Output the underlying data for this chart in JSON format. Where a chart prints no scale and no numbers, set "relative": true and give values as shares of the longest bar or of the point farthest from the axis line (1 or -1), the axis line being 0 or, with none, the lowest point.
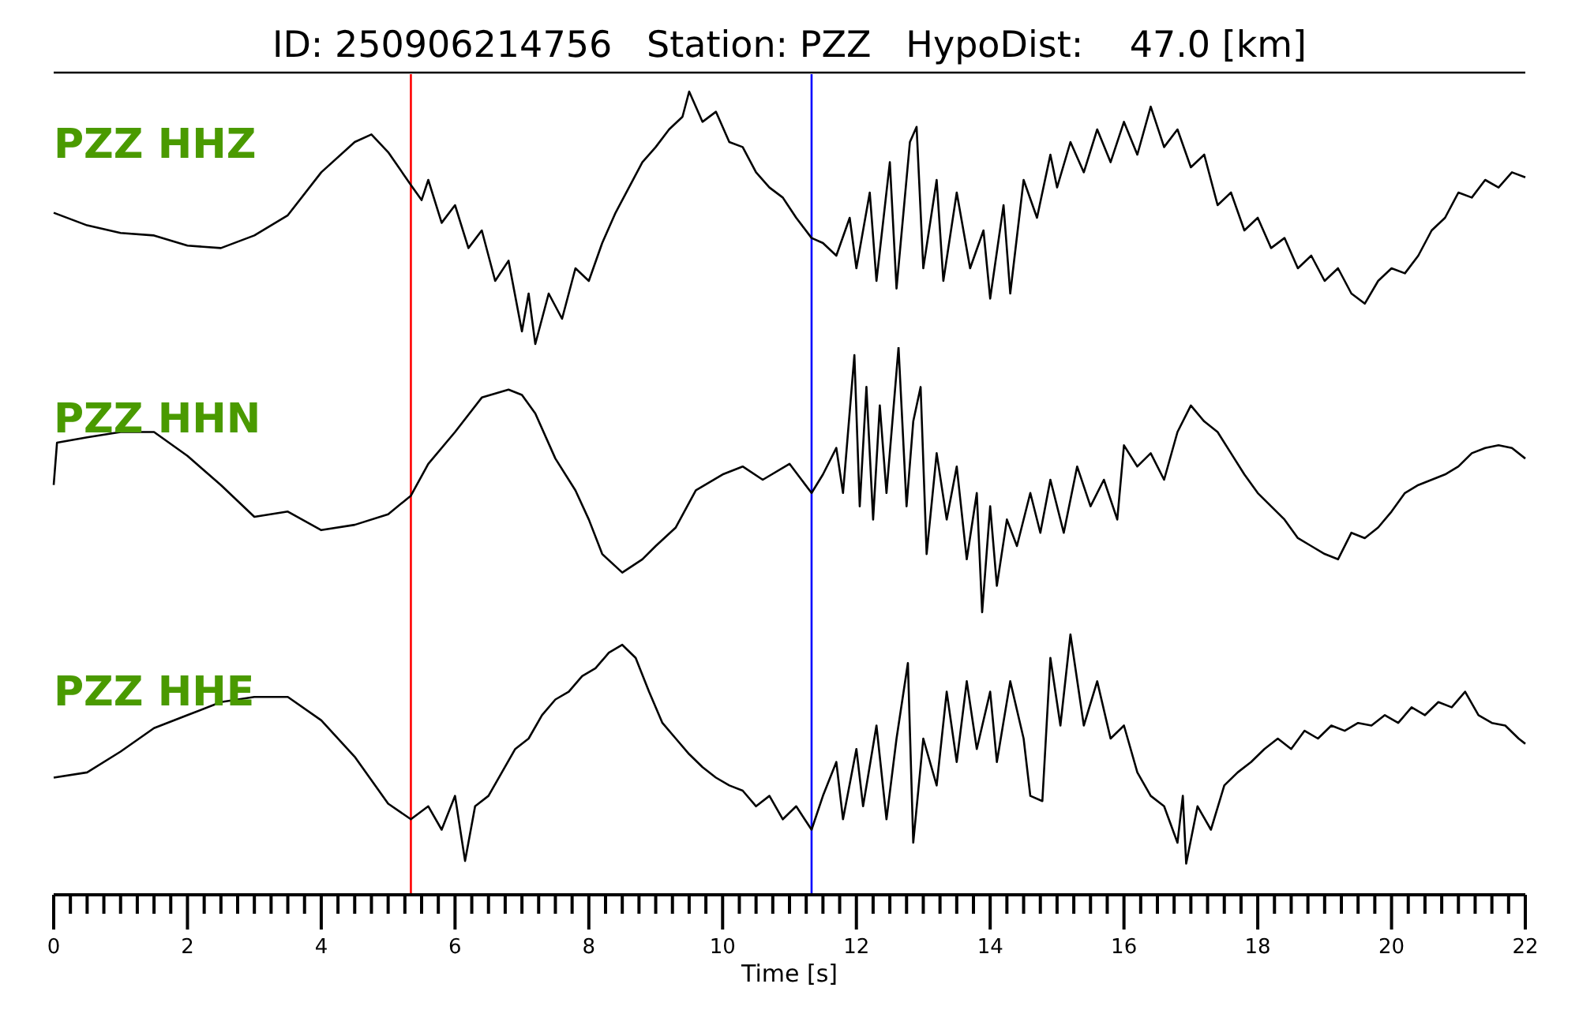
{
  "chart_data": [
    {
      "type": "line",
      "title": "ID: 250906214756   Station: PZZ   HypoDist:    47.0 [km]",
      "relative": true,
      "xlim": [
        0,
        22
      ],
      "tick_labels": false,
      "series": [
        {
          "name": "PZZ HHZ",
          "color": "#000000",
          "x": [
            0,
            0.5,
            1,
            1.5,
            2,
            2.5,
            3,
            3.5,
            4,
            4.5,
            4.75,
            5,
            5.34,
            5.5,
            5.6,
            5.8,
            6,
            6.2,
            6.4,
            6.6,
            6.8,
            7,
            7.1,
            7.2,
            7.4,
            7.6,
            7.8,
            8,
            8.2,
            8.4,
            8.6,
            8.8,
            9,
            9.2,
            9.4,
            9.5,
            9.7,
            9.9,
            10.1,
            10.3,
            10.5,
            10.7,
            10.9,
            11.1,
            11.33,
            11.5,
            11.7,
            11.9,
            12,
            12.2,
            12.3,
            12.5,
            12.6,
            12.8,
            12.9,
            13,
            13.2,
            13.3,
            13.5,
            13.7,
            13.9,
            14,
            14.2,
            14.3,
            14.5,
            14.7,
            14.9,
            15,
            15.2,
            15.4,
            15.6,
            15.8,
            16,
            16.2,
            16.4,
            16.6,
            16.8,
            17,
            17.2,
            17.4,
            17.6,
            17.8,
            18,
            18.2,
            18.4,
            18.6,
            18.8,
            19,
            19.2,
            19.4,
            19.6,
            19.8,
            20,
            20.2,
            20.4,
            20.6,
            20.8,
            21,
            21.2,
            21.4,
            21.6,
            21.8,
            22
          ],
          "values": [
            0.52,
            0.47,
            0.44,
            0.43,
            0.39,
            0.38,
            0.43,
            0.51,
            0.68,
            0.8,
            0.83,
            0.76,
            0.63,
            0.57,
            0.65,
            0.48,
            0.55,
            0.38,
            0.45,
            0.25,
            0.33,
            0.05,
            0.2,
            0,
            0.2,
            0.1,
            0.3,
            0.25,
            0.4,
            0.52,
            0.62,
            0.72,
            0.78,
            0.85,
            0.9,
            1,
            0.88,
            0.92,
            0.8,
            0.78,
            0.68,
            0.62,
            0.58,
            0.5,
            0.42,
            0.4,
            0.35,
            0.5,
            0.3,
            0.6,
            0.25,
            0.72,
            0.22,
            0.8,
            0.86,
            0.3,
            0.65,
            0.25,
            0.6,
            0.3,
            0.45,
            0.18,
            0.55,
            0.2,
            0.65,
            0.5,
            0.75,
            0.62,
            0.8,
            0.68,
            0.85,
            0.72,
            0.88,
            0.75,
            0.94,
            0.78,
            0.85,
            0.7,
            0.75,
            0.55,
            0.6,
            0.45,
            0.5,
            0.38,
            0.42,
            0.3,
            0.35,
            0.25,
            0.3,
            0.2,
            0.16,
            0.25,
            0.3,
            0.28,
            0.35,
            0.45,
            0.5,
            0.6,
            0.58,
            0.65,
            0.62,
            0.68,
            0.66
          ]
        }
      ],
      "ref_lines": [
        {
          "axis": "x",
          "value": 5.34,
          "color": "#ff0000"
        },
        {
          "axis": "x",
          "value": 11.33,
          "color": "#0000ff"
        }
      ]
    },
    {
      "type": "line",
      "relative": true,
      "xlim": [
        0,
        22
      ],
      "tick_labels": false,
      "series": [
        {
          "name": "PZZ HHN",
          "color": "#000000",
          "x": [
            0,
            0.05,
            0.5,
            1,
            1.5,
            2,
            2.5,
            3,
            3.5,
            4,
            4.5,
            5,
            5.34,
            5.6,
            6,
            6.4,
            6.8,
            7,
            7.2,
            7.5,
            7.8,
            8,
            8.2,
            8.5,
            8.8,
            9,
            9.3,
            9.6,
            10,
            10.3,
            10.6,
            11,
            11.33,
            11.5,
            11.7,
            11.8,
            11.97,
            12.05,
            12.15,
            12.25,
            12.35,
            12.45,
            12.63,
            12.75,
            12.85,
            12.96,
            13.05,
            13.2,
            13.35,
            13.5,
            13.65,
            13.8,
            13.88,
            14,
            14.1,
            14.25,
            14.4,
            14.6,
            14.75,
            14.9,
            15.1,
            15.3,
            15.5,
            15.7,
            15.9,
            16,
            16.2,
            16.4,
            16.6,
            16.8,
            17,
            17.2,
            17.4,
            17.6,
            17.8,
            18,
            18.2,
            18.4,
            18.6,
            18.8,
            19,
            19.2,
            19.4,
            19.6,
            19.8,
            20,
            20.2,
            20.4,
            20.6,
            20.8,
            21,
            21.2,
            21.4,
            21.6,
            21.8,
            22
          ],
          "values": [
            0.48,
            0.64,
            0.66,
            0.68,
            0.68,
            0.59,
            0.48,
            0.36,
            0.38,
            0.31,
            0.33,
            0.37,
            0.44,
            0.56,
            0.68,
            0.81,
            0.84,
            0.82,
            0.75,
            0.58,
            0.46,
            0.35,
            0.22,
            0.15,
            0.2,
            0.25,
            0.32,
            0.46,
            0.52,
            0.55,
            0.5,
            0.56,
            0.45,
            0.52,
            0.62,
            0.45,
            0.97,
            0.4,
            0.85,
            0.35,
            0.78,
            0.45,
            1,
            0.4,
            0.72,
            0.85,
            0.22,
            0.6,
            0.35,
            0.55,
            0.2,
            0.45,
            0,
            0.4,
            0.1,
            0.35,
            0.25,
            0.45,
            0.3,
            0.5,
            0.3,
            0.55,
            0.4,
            0.5,
            0.35,
            0.63,
            0.55,
            0.6,
            0.5,
            0.68,
            0.78,
            0.72,
            0.68,
            0.6,
            0.52,
            0.45,
            0.4,
            0.35,
            0.28,
            0.25,
            0.22,
            0.2,
            0.3,
            0.28,
            0.32,
            0.38,
            0.45,
            0.48,
            0.5,
            0.52,
            0.55,
            0.6,
            0.62,
            0.63,
            0.62,
            0.58
          ]
        }
      ],
      "ref_lines": [
        {
          "axis": "x",
          "value": 5.34,
          "color": "#ff0000"
        },
        {
          "axis": "x",
          "value": 11.33,
          "color": "#0000ff"
        }
      ]
    },
    {
      "type": "line",
      "relative": true,
      "xlim": [
        0,
        22
      ],
      "xlabel": "Time [s]",
      "tick_labels": "x",
      "xticks": [
        0,
        {
          "value": 0.25,
          "label": null
        },
        {
          "value": 0.5,
          "label": null
        },
        {
          "value": 0.75,
          "label": null
        },
        {
          "value": 1,
          "label": null
        },
        {
          "value": 1.25,
          "label": null
        },
        {
          "value": 1.5,
          "label": null
        },
        {
          "value": 1.75,
          "label": null
        },
        2,
        {
          "value": 2.25,
          "label": null
        },
        {
          "value": 2.5,
          "label": null
        },
        {
          "value": 2.75,
          "label": null
        },
        {
          "value": 3,
          "label": null
        },
        {
          "value": 3.25,
          "label": null
        },
        {
          "value": 3.5,
          "label": null
        },
        {
          "value": 3.75,
          "label": null
        },
        4,
        {
          "value": 4.25,
          "label": null
        },
        {
          "value": 4.5,
          "label": null
        },
        {
          "value": 4.75,
          "label": null
        },
        {
          "value": 5,
          "label": null
        },
        {
          "value": 5.25,
          "label": null
        },
        {
          "value": 5.5,
          "label": null
        },
        {
          "value": 5.75,
          "label": null
        },
        6,
        {
          "value": 6.25,
          "label": null
        },
        {
          "value": 6.5,
          "label": null
        },
        {
          "value": 6.75,
          "label": null
        },
        {
          "value": 7,
          "label": null
        },
        {
          "value": 7.25,
          "label": null
        },
        {
          "value": 7.5,
          "label": null
        },
        {
          "value": 7.75,
          "label": null
        },
        8,
        {
          "value": 8.25,
          "label": null
        },
        {
          "value": 8.5,
          "label": null
        },
        {
          "value": 8.75,
          "label": null
        },
        {
          "value": 9,
          "label": null
        },
        {
          "value": 9.25,
          "label": null
        },
        {
          "value": 9.5,
          "label": null
        },
        {
          "value": 9.75,
          "label": null
        },
        10,
        {
          "value": 10.25,
          "label": null
        },
        {
          "value": 10.5,
          "label": null
        },
        {
          "value": 10.75,
          "label": null
        },
        {
          "value": 11,
          "label": null
        },
        {
          "value": 11.25,
          "label": null
        },
        {
          "value": 11.5,
          "label": null
        },
        {
          "value": 11.75,
          "label": null
        },
        12,
        {
          "value": 12.25,
          "label": null
        },
        {
          "value": 12.5,
          "label": null
        },
        {
          "value": 12.75,
          "label": null
        },
        {
          "value": 13,
          "label": null
        },
        {
          "value": 13.25,
          "label": null
        },
        {
          "value": 13.5,
          "label": null
        },
        {
          "value": 13.75,
          "label": null
        },
        14,
        {
          "value": 14.25,
          "label": null
        },
        {
          "value": 14.5,
          "label": null
        },
        {
          "value": 14.75,
          "label": null
        },
        {
          "value": 15,
          "label": null
        },
        {
          "value": 15.25,
          "label": null
        },
        {
          "value": 15.5,
          "label": null
        },
        {
          "value": 15.75,
          "label": null
        },
        16,
        {
          "value": 16.25,
          "label": null
        },
        {
          "value": 16.5,
          "label": null
        },
        {
          "value": 16.75,
          "label": null
        },
        {
          "value": 17,
          "label": null
        },
        {
          "value": 17.25,
          "label": null
        },
        {
          "value": 17.5,
          "label": null
        },
        {
          "value": 17.75,
          "label": null
        },
        18,
        {
          "value": 18.25,
          "label": null
        },
        {
          "value": 18.5,
          "label": null
        },
        {
          "value": 18.75,
          "label": null
        },
        {
          "value": 19,
          "label": null
        },
        {
          "value": 19.25,
          "label": null
        },
        {
          "value": 19.5,
          "label": null
        },
        {
          "value": 19.75,
          "label": null
        },
        20,
        {
          "value": 20.25,
          "label": null
        },
        {
          "value": 20.5,
          "label": null
        },
        {
          "value": 20.75,
          "label": null
        },
        {
          "value": 21,
          "label": null
        },
        {
          "value": 21.25,
          "label": null
        },
        {
          "value": 21.5,
          "label": null
        },
        {
          "value": 21.75,
          "label": null
        },
        22
      ],
      "series": [
        {
          "name": "PZZ HHE",
          "color": "#000000",
          "x": [
            0,
            0.5,
            1,
            1.5,
            2,
            2.5,
            3,
            3.5,
            4,
            4.5,
            5,
            5.34,
            5.6,
            5.8,
            6,
            6.15,
            6.3,
            6.5,
            6.7,
            6.9,
            7.1,
            7.3,
            7.5,
            7.7,
            7.9,
            8.1,
            8.3,
            8.5,
            8.7,
            8.9,
            9.1,
            9.3,
            9.5,
            9.7,
            9.9,
            10.1,
            10.3,
            10.5,
            10.7,
            10.9,
            11.1,
            11.33,
            11.5,
            11.7,
            11.8,
            12,
            12.1,
            12.3,
            12.45,
            12.6,
            12.77,
            12.85,
            13,
            13.2,
            13.35,
            13.5,
            13.65,
            13.8,
            14,
            14.1,
            14.3,
            14.5,
            14.6,
            14.78,
            14.9,
            15.05,
            15.2,
            15.4,
            15.6,
            15.8,
            16,
            16.2,
            16.4,
            16.6,
            16.8,
            16.88,
            16.93,
            17.1,
            17.3,
            17.5,
            17.7,
            17.9,
            18.1,
            18.3,
            18.5,
            18.7,
            18.9,
            19.1,
            19.3,
            19.5,
            19.7,
            19.9,
            20.1,
            20.3,
            20.5,
            20.7,
            20.9,
            21.1,
            21.3,
            21.5,
            21.7,
            21.9,
            22
          ],
          "values": [
            0.45,
            0.47,
            0.55,
            0.64,
            0.69,
            0.74,
            0.76,
            0.76,
            0.67,
            0.53,
            0.35,
            0.29,
            0.34,
            0.25,
            0.38,
            0.13,
            0.34,
            0.38,
            0.47,
            0.56,
            0.6,
            0.69,
            0.75,
            0.78,
            0.84,
            0.87,
            0.93,
            0.96,
            0.91,
            0.78,
            0.66,
            0.6,
            0.54,
            0.49,
            0.45,
            0.42,
            0.4,
            0.34,
            0.38,
            0.29,
            0.34,
            0.25,
            0.38,
            0.51,
            0.29,
            0.56,
            0.34,
            0.65,
            0.29,
            0.6,
            0.89,
            0.2,
            0.6,
            0.42,
            0.78,
            0.51,
            0.82,
            0.56,
            0.78,
            0.51,
            0.82,
            0.6,
            0.38,
            0.36,
            0.91,
            0.65,
            1,
            0.65,
            0.82,
            0.6,
            0.65,
            0.47,
            0.38,
            0.34,
            0.2,
            0.38,
            0.12,
            0.34,
            0.25,
            0.42,
            0.47,
            0.51,
            0.56,
            0.6,
            0.56,
            0.63,
            0.6,
            0.65,
            0.63,
            0.66,
            0.65,
            0.69,
            0.66,
            0.72,
            0.69,
            0.74,
            0.72,
            0.78,
            0.69,
            0.66,
            0.65,
            0.6,
            0.58
          ]
        }
      ],
      "ref_lines": [
        {
          "axis": "x",
          "value": 5.34,
          "color": "#ff0000"
        },
        {
          "axis": "x",
          "value": 11.33,
          "color": "#0000ff"
        }
      ]
    }
  ]
}
